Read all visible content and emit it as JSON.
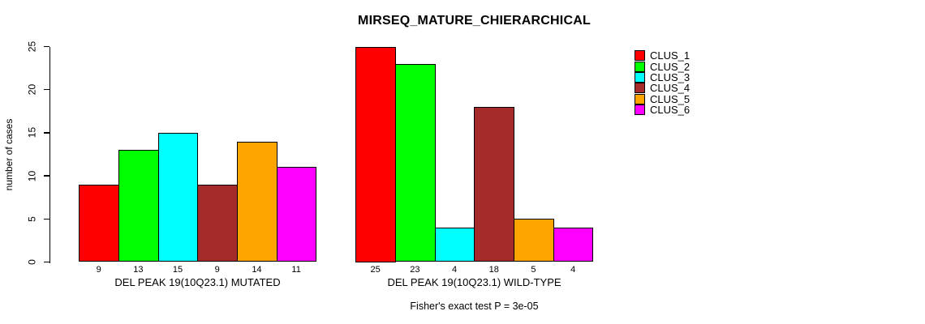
{
  "chart_data": {
    "type": "bar",
    "title": "MIRSEQ_MATURE_CHIERARCHICAL",
    "ylabel": "number of cases",
    "ylim": [
      0,
      25
    ],
    "yticks": [
      0,
      5,
      10,
      15,
      20,
      25
    ],
    "grid": false,
    "legend_position": "right",
    "clusters": [
      "CLUS_1",
      "CLUS_2",
      "CLUS_3",
      "CLUS_4",
      "CLUS_5",
      "CLUS_6"
    ],
    "colors": [
      "#ff0000",
      "#00ff00",
      "#00ffff",
      "#a52a2a",
      "#ffa500",
      "#ff00ff"
    ],
    "groups": [
      {
        "xlabel": "DEL PEAK 19(10Q23.1) MUTATED",
        "values": [
          9,
          13,
          15,
          9,
          14,
          11
        ]
      },
      {
        "xlabel": "DEL PEAK 19(10Q23.1) WILD-TYPE",
        "values": [
          25,
          23,
          4,
          18,
          5,
          4
        ]
      }
    ],
    "bar_value_labels": true,
    "annotation": "Fisher's exact test P = 3e-05"
  }
}
